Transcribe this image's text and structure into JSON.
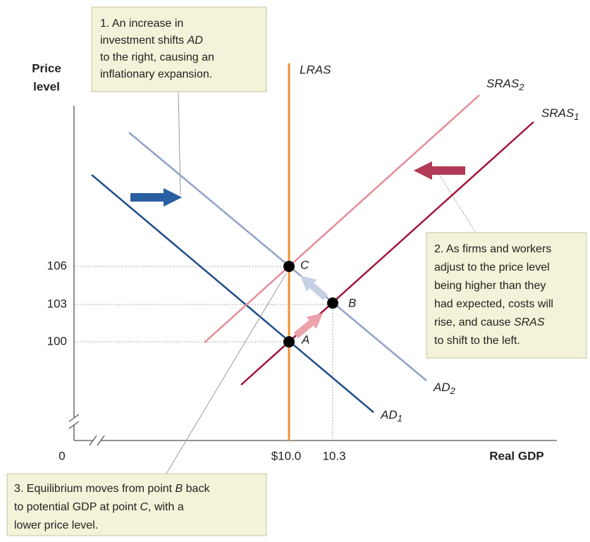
{
  "axes": {
    "y_label": [
      "Price",
      "level"
    ],
    "x_label": "Real GDP",
    "origin": "0",
    "y_ticks": [
      "106",
      "103",
      "100"
    ],
    "x_ticks": [
      "$10.0",
      "10.3"
    ]
  },
  "curves": {
    "lras": "LRAS",
    "sras2": {
      "name": "SRAS",
      "sub": "2"
    },
    "sras1": {
      "name": "SRAS",
      "sub": "1"
    },
    "ad2": {
      "name": "AD",
      "sub": "2"
    },
    "ad1": {
      "name": "AD",
      "sub": "1"
    }
  },
  "points": [
    "A",
    "B",
    "C"
  ],
  "notes": [
    [
      [
        "1.  An increase in"
      ],
      [
        "investment shifts ",
        "AD"
      ],
      [
        "to the right, causing an"
      ],
      [
        "inflationary expansion."
      ]
    ],
    [
      [
        "2. As firms and workers"
      ],
      [
        "adjust to the price level"
      ],
      [
        "being higher than they"
      ],
      [
        "had expected, costs will"
      ],
      [
        "rise, and cause ",
        "SRAS"
      ],
      [
        "to shift to the left."
      ]
    ],
    [
      [
        "3. Equilibrium moves from point ",
        "B",
        " back"
      ],
      [
        "to potential GDP at point ",
        "C",
        ", with a"
      ],
      [
        "lower price level."
      ]
    ]
  ]
}
